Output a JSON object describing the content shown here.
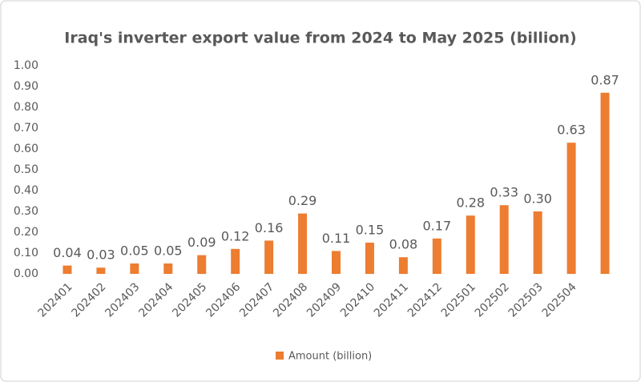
{
  "chart_data": {
    "type": "bar",
    "title": "Iraq's inverter export value from 2024 to May 2025 (billion)",
    "categories": [
      "202401",
      "202402",
      "202403",
      "202404",
      "202405",
      "202406",
      "202407",
      "202408",
      "202409",
      "202410",
      "202411",
      "202412",
      "202501",
      "202502",
      "202503",
      "202504",
      null
    ],
    "series": [
      {
        "name": "Amount (billion)",
        "color": "#ed7d31",
        "values": [
          0.04,
          0.03,
          0.05,
          0.05,
          0.09,
          0.12,
          0.16,
          0.29,
          0.11,
          0.15,
          0.08,
          0.17,
          0.28,
          0.33,
          0.3,
          0.63,
          0.87
        ],
        "value_labels": [
          "0.04",
          "0.03",
          "0.05",
          "0.05",
          "0.09",
          "0.12",
          "0.16",
          "0.29",
          "0.11",
          "0.15",
          "0.08",
          "0.17",
          "0.28",
          "0.33",
          "0.30",
          "0.63",
          "0.87"
        ]
      }
    ],
    "ylim": [
      0,
      1
    ],
    "yticks": [
      {
        "value": 0,
        "label": "0.00"
      },
      {
        "value": 0.1,
        "label": "0.10"
      },
      {
        "value": 0.2,
        "label": "0.20"
      },
      {
        "value": 0.3,
        "label": "0.30"
      },
      {
        "value": 0.4,
        "label": "0.40"
      },
      {
        "value": 0.5,
        "label": "0.50"
      },
      {
        "value": 0.6,
        "label": "0.60"
      },
      {
        "value": 0.7,
        "label": "0.70"
      },
      {
        "value": 0.8,
        "label": "0.80"
      },
      {
        "value": 0.9,
        "label": "0.90"
      },
      {
        "value": 1,
        "label": "1.00"
      }
    ],
    "grid": false,
    "legend": "bottom"
  }
}
